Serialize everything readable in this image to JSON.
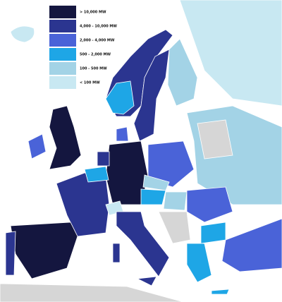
{
  "legend": {
    "items": [
      {
        "label": "> 10,000 MW",
        "color": "#14163f"
      },
      {
        "label": "4,000 - 10,000 MW",
        "color": "#2b3590"
      },
      {
        "label": "2,000 - 4,000 MW",
        "color": "#4a63d8"
      },
      {
        "label": "500 - 2,000 MW",
        "color": "#1ea6e6"
      },
      {
        "label": "100 - 500 MW",
        "color": "#a3d3e6"
      },
      {
        "label": "< 100 MW",
        "color": "#c8e8f2"
      }
    ]
  }
}
